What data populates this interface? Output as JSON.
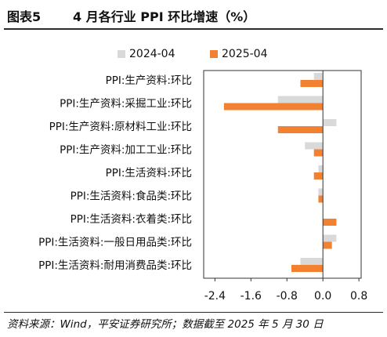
{
  "figure": {
    "number": "图表5",
    "title": "4 月各行业 PPI 环比增速（%）"
  },
  "chart_data": {
    "type": "bar",
    "orientation": "horizontal",
    "title": "4 月各行业 PPI 环比增速（%）",
    "xlabel": "",
    "ylabel": "",
    "categories": [
      "PPI:生产资料:环比",
      "PPI:生产资料:采掘工业:环比",
      "PPI:生产资料:原材料工业:环比",
      "PPI:生产资料:加工工业:环比",
      "PPI:生活资料:环比",
      "PPI:生活资料:食品类:环比",
      "PPI:生活资料:衣着类:环比",
      "PPI:生活资料:一般日用品类:环比",
      "PPI:生活资料:耐用消费品类:环比"
    ],
    "series": [
      {
        "name": "2024-04",
        "color": "#d9d9d9",
        "values": [
          -0.2,
          -1.0,
          0.3,
          -0.4,
          -0.1,
          -0.1,
          0.0,
          0.3,
          -0.5
        ]
      },
      {
        "name": "2025-04",
        "color": "#f28131",
        "values": [
          -0.5,
          -2.2,
          -1.0,
          -0.2,
          -0.2,
          -0.1,
          0.3,
          0.2,
          -0.7
        ]
      }
    ],
    "xlim": [
      -2.65,
      0.85
    ],
    "xticks": [
      -2.4,
      -1.6,
      -0.8,
      0.0,
      0.8
    ],
    "xtick_labels": [
      "-2.4",
      "-1.6",
      "-0.8",
      "0.0",
      "0.8"
    ],
    "grid": false,
    "legend": {
      "position": "top-center"
    }
  },
  "source": {
    "text": "资料来源：Wind，平安证券研究所；数据截至 2025 年 5 月 30 日"
  }
}
